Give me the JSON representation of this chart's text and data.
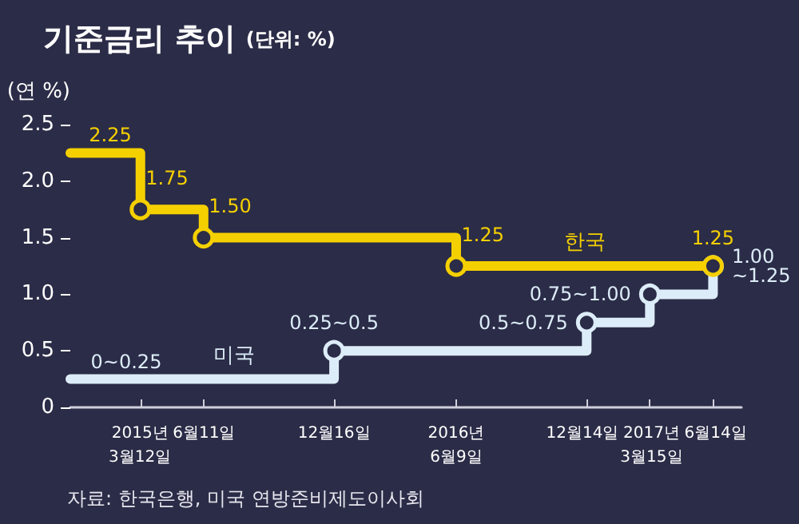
{
  "chart_data": {
    "type": "step",
    "title": "기준금리 추이",
    "subtitle": "(단위: %)",
    "ylabel": "(연 %)",
    "annotations": [
      "자료: 한국은행, 미국 연방준비제도이사회"
    ],
    "xlim": [
      "2014-12-01",
      "2017-07-25"
    ],
    "xticks": [
      {
        "value": "2015-03-12",
        "label": "2015년\n3월12일"
      },
      {
        "value": "2015-06-11",
        "label": "6월11일"
      },
      {
        "value": "2015-12-16",
        "label": "12월16일"
      },
      {
        "value": "2016-06-09",
        "label": "2016년\n6월9일"
      },
      {
        "value": "2016-12-14",
        "label": "12월14일"
      },
      {
        "value": "2017-03-15",
        "label": "2017년\n3월15일"
      },
      {
        "value": "2017-06-14",
        "label": "6월14일"
      }
    ],
    "ylim": [
      0,
      2.5
    ],
    "yticks": [
      0,
      {
        "value": 0.5,
        "label": "0.5"
      },
      {
        "value": 1,
        "label": "1.0"
      },
      {
        "value": 1.5,
        "label": "1.5"
      },
      {
        "value": 2,
        "label": "2.0"
      },
      {
        "value": 2.5,
        "label": "2.5"
      }
    ],
    "marker": "circle",
    "line_style": "solid",
    "grid": false,
    "series": [
      {
        "name": "한국",
        "color": "#f5d000",
        "x": [
          "2014-12-01",
          "2015-03-12",
          "2015-06-11",
          "2016-06-09",
          "2017-06-14"
        ],
        "values": [
          2.25,
          1.75,
          1.5,
          1.25,
          1.25
        ],
        "value_labels": [
          "2.25",
          "1.75",
          "1.50",
          "1.25",
          "1.25"
        ]
      },
      {
        "name": "미국",
        "color": "#dcecf8",
        "x": [
          "2014-12-01",
          "2015-12-16",
          "2016-12-14",
          "2017-03-15",
          "2017-06-14"
        ],
        "values": [
          0.25,
          0.5,
          0.75,
          1,
          1.25
        ],
        "value_labels": [
          "0~0.25",
          "0.25~0.5",
          "0.5~0.75",
          "0.75~1.00",
          "1.00\n~1.25"
        ]
      }
    ]
  }
}
